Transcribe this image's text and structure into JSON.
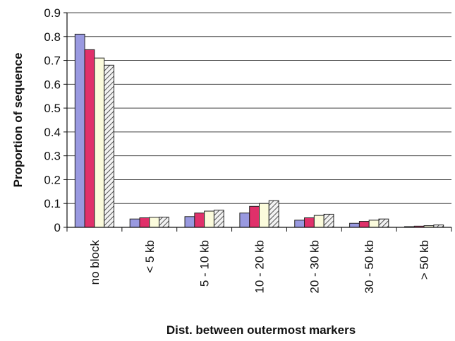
{
  "chart_data": {
    "type": "bar",
    "title": "",
    "xlabel": "Dist. between outermost markers",
    "ylabel": "Proportion of sequence",
    "ylim": [
      0,
      0.9
    ],
    "yticks": [
      "0",
      "0.1",
      "0.2",
      "0.3",
      "0.4",
      "0.5",
      "0.6",
      "0.7",
      "0.8",
      "0.9"
    ],
    "grid": "horizontal",
    "legend": "none",
    "categories": [
      "no block",
      "< 5 kb",
      "5 - 10 kb",
      "10 - 20 kb",
      "20 - 30 kb",
      "30 - 50 kb",
      "> 50 kb"
    ],
    "series": [
      {
        "color": "#9999e0",
        "pattern": "solid",
        "values": [
          0.81,
          0.035,
          0.045,
          0.06,
          0.03,
          0.017,
          0.003
        ]
      },
      {
        "color": "#e0306a",
        "pattern": "solid",
        "values": [
          0.745,
          0.04,
          0.06,
          0.088,
          0.04,
          0.025,
          0.005
        ]
      },
      {
        "color": "#fbfbdc",
        "pattern": "solid",
        "values": [
          0.71,
          0.042,
          0.068,
          0.1,
          0.05,
          0.03,
          0.007
        ]
      },
      {
        "color": "#d8d8d8",
        "pattern": "hatched",
        "values": [
          0.68,
          0.043,
          0.072,
          0.112,
          0.055,
          0.035,
          0.01
        ]
      }
    ]
  }
}
